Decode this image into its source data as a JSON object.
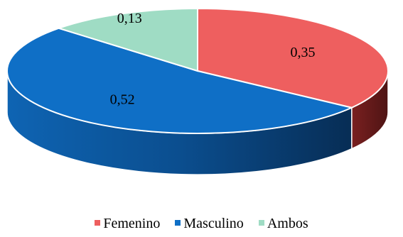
{
  "chart_data": {
    "type": "pie",
    "style": "3d",
    "labels": [
      "Femenino",
      "Masculino",
      "Ambos"
    ],
    "values": [
      0.35,
      0.52,
      0.13
    ],
    "value_labels": [
      "0,35",
      "0,52",
      "0,13"
    ],
    "colors": [
      "#ee5f5f",
      "#0f6fc6",
      "#9fdcc4"
    ],
    "legend_position": "bottom"
  }
}
